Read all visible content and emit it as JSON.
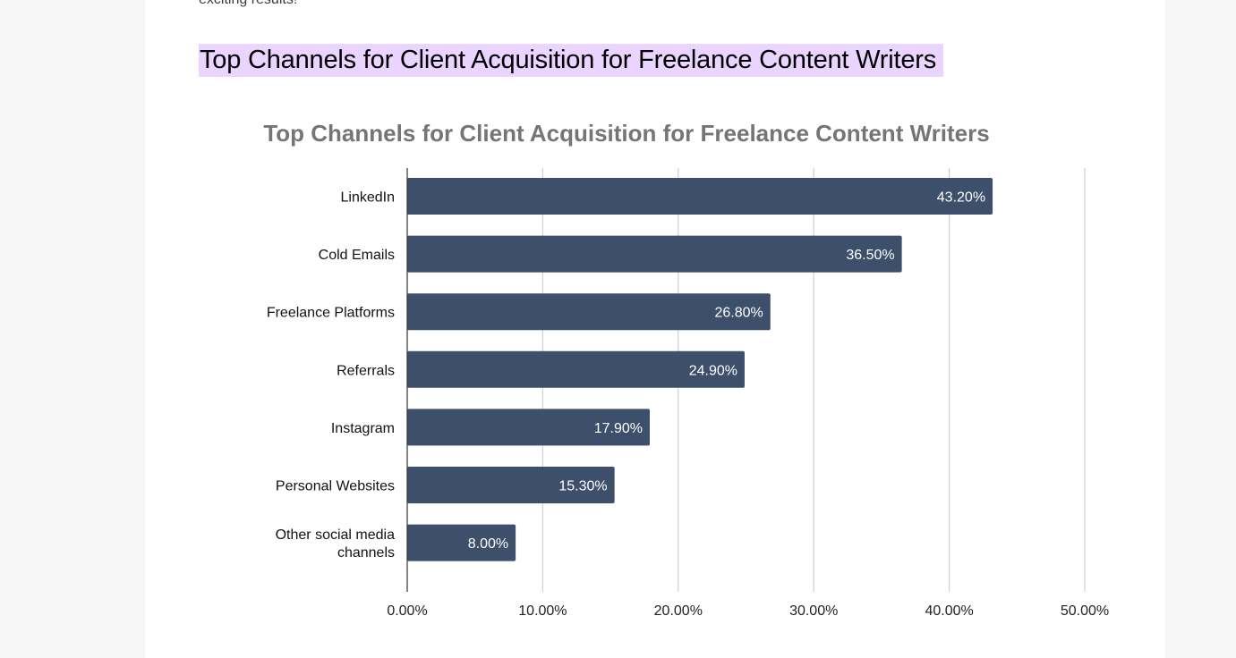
{
  "article": {
    "intro_text": "exciting results!",
    "heading": "Top Channels for Client Acquisition for Freelance Content Writers"
  },
  "colors": {
    "bar": "#3d4f6b",
    "heading_highlight": "#e9d5ff",
    "grid": "#d0d0d0",
    "title": "#757575"
  },
  "chart_data": {
    "type": "bar",
    "orientation": "horizontal",
    "title": "Top Channels for Client Acquisition for Freelance Content Writers",
    "xlabel": "",
    "ylabel": "",
    "categories": [
      [
        "LinkedIn"
      ],
      [
        "Cold Emails"
      ],
      [
        "Freelance Platforms"
      ],
      [
        "Referrals"
      ],
      [
        "Instagram"
      ],
      [
        "Personal Websites"
      ],
      [
        "Other social media",
        "channels"
      ]
    ],
    "values": [
      43.2,
      36.5,
      26.8,
      24.9,
      17.9,
      15.3,
      8.0
    ],
    "value_labels": [
      "43.20%",
      "36.50%",
      "26.80%",
      "24.90%",
      "17.90%",
      "15.30%",
      "8.00%"
    ],
    "xlim": [
      0,
      50
    ],
    "x_ticks": [
      0,
      10,
      20,
      30,
      40,
      50
    ],
    "x_tick_labels": [
      "0.00%",
      "10.00%",
      "20.00%",
      "30.00%",
      "40.00%",
      "50.00%"
    ],
    "grid": true,
    "legend": "none"
  }
}
